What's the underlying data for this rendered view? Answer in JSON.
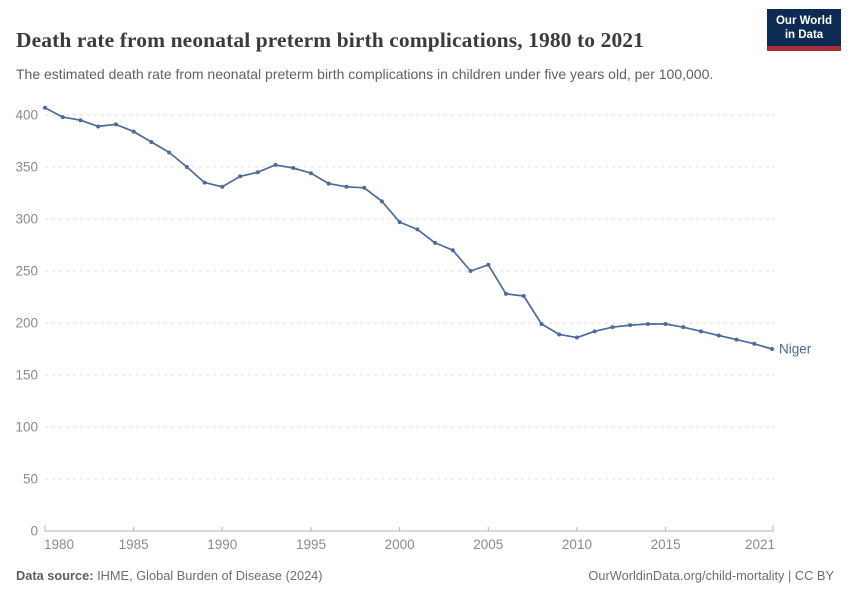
{
  "header": {
    "title": "Death rate from neonatal preterm birth complications, 1980 to 2021",
    "subtitle": "The estimated death rate from neonatal preterm birth complications in children under five years old, per 100,000.",
    "logo": {
      "line1": "Our World",
      "line2": "in Data"
    }
  },
  "chart_data": {
    "type": "line",
    "title": "Death rate from neonatal preterm birth complications, 1980 to 2021",
    "xlabel": "",
    "ylabel": "",
    "ylim": [
      0,
      420
    ],
    "yticks": [
      0,
      50,
      100,
      150,
      200,
      250,
      300,
      350,
      400
    ],
    "xticks": [
      1980,
      1985,
      1990,
      1995,
      2000,
      2005,
      2010,
      2015,
      2021
    ],
    "grid": "horizontal-dashed",
    "legend_position": "end-of-line-label",
    "series": [
      {
        "name": "Niger",
        "color": "#4c6a9c",
        "x": [
          1980,
          1981,
          1982,
          1983,
          1984,
          1985,
          1986,
          1987,
          1988,
          1989,
          1990,
          1991,
          1992,
          1993,
          1994,
          1995,
          1996,
          1997,
          1998,
          1999,
          2000,
          2001,
          2002,
          2003,
          2004,
          2005,
          2006,
          2007,
          2008,
          2009,
          2010,
          2011,
          2012,
          2013,
          2014,
          2015,
          2016,
          2017,
          2018,
          2019,
          2020,
          2021
        ],
        "values": [
          407,
          398,
          395,
          389,
          391,
          384,
          374,
          364,
          350,
          335,
          331,
          341,
          345,
          352,
          349,
          344,
          334,
          331,
          330,
          317,
          297,
          290,
          277,
          270,
          250,
          256,
          228,
          226,
          199,
          189,
          186,
          192,
          196,
          198,
          199,
          199,
          196,
          192,
          188,
          184,
          180,
          175
        ]
      }
    ]
  },
  "footer": {
    "datasource_label": "Data source:",
    "datasource_text": " IHME, Global Burden of Disease (2024)",
    "credit": "OurWorldinData.org/child-mortality | CC BY"
  },
  "colors": {
    "line": "#4c6a9c",
    "grid": "#dcdcdc",
    "axis": "#b3b3b3",
    "tick_label": "#8b8b8b",
    "logo_bg": "#0d2b52",
    "logo_stripe": "#a62e36"
  }
}
